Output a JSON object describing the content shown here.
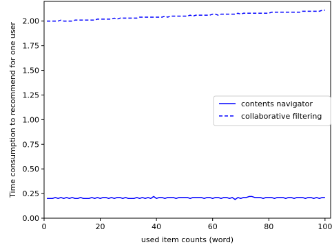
{
  "chart_data": {
    "type": "line",
    "title": "",
    "xlabel": "used item counts (word)",
    "ylabel": "Time consumption to recommend for one user",
    "xlim": [
      0,
      102
    ],
    "ylim": [
      0,
      2.2
    ],
    "xticks": [
      0,
      20,
      40,
      60,
      80,
      100
    ],
    "yticks": [
      0.0,
      0.25,
      0.5,
      0.75,
      1.0,
      1.25,
      1.5,
      1.75,
      2.0
    ],
    "xtick_labels": [
      "0",
      "20",
      "40",
      "60",
      "80",
      "100"
    ],
    "ytick_labels": [
      "0.00",
      "0.25",
      "0.50",
      "0.75",
      "1.00",
      "1.25",
      "1.50",
      "1.75",
      "2.00"
    ],
    "grid": false,
    "legend_position": "center-right",
    "series": [
      {
        "name": "contents navigator",
        "color": "#0000ff",
        "style": "solid",
        "x": [
          1,
          2,
          3,
          4,
          5,
          6,
          7,
          8,
          9,
          10,
          11,
          12,
          13,
          14,
          15,
          16,
          17,
          18,
          19,
          20,
          21,
          22,
          23,
          24,
          25,
          26,
          27,
          28,
          29,
          30,
          31,
          32,
          33,
          34,
          35,
          36,
          37,
          38,
          39,
          40,
          41,
          42,
          43,
          44,
          45,
          46,
          47,
          48,
          49,
          50,
          51,
          52,
          53,
          54,
          55,
          56,
          57,
          58,
          59,
          60,
          61,
          62,
          63,
          64,
          65,
          66,
          67,
          68,
          69,
          70,
          71,
          72,
          73,
          74,
          75,
          76,
          77,
          78,
          79,
          80,
          81,
          82,
          83,
          84,
          85,
          86,
          87,
          88,
          89,
          90,
          91,
          92,
          93,
          94,
          95,
          96,
          97,
          98,
          99,
          100
        ],
        "values": [
          0.2,
          0.2,
          0.2,
          0.21,
          0.2,
          0.21,
          0.2,
          0.21,
          0.2,
          0.21,
          0.2,
          0.2,
          0.21,
          0.2,
          0.2,
          0.2,
          0.21,
          0.2,
          0.21,
          0.2,
          0.21,
          0.21,
          0.2,
          0.21,
          0.2,
          0.21,
          0.21,
          0.2,
          0.21,
          0.2,
          0.2,
          0.2,
          0.21,
          0.2,
          0.21,
          0.2,
          0.21,
          0.2,
          0.22,
          0.2,
          0.21,
          0.21,
          0.2,
          0.21,
          0.21,
          0.21,
          0.2,
          0.21,
          0.21,
          0.21,
          0.21,
          0.2,
          0.21,
          0.21,
          0.21,
          0.21,
          0.2,
          0.21,
          0.21,
          0.2,
          0.21,
          0.21,
          0.2,
          0.21,
          0.21,
          0.2,
          0.21,
          0.19,
          0.21,
          0.2,
          0.21,
          0.21,
          0.22,
          0.22,
          0.21,
          0.21,
          0.21,
          0.2,
          0.21,
          0.21,
          0.21,
          0.2,
          0.21,
          0.21,
          0.21,
          0.2,
          0.21,
          0.21,
          0.2,
          0.21,
          0.21,
          0.21,
          0.2,
          0.21,
          0.21,
          0.2,
          0.21,
          0.2,
          0.21,
          0.21
        ]
      },
      {
        "name": "collaborative filtering",
        "color": "#0000ff",
        "style": "dashed",
        "x": [
          1,
          2,
          3,
          4,
          5,
          6,
          7,
          8,
          9,
          10,
          11,
          12,
          13,
          14,
          15,
          16,
          17,
          18,
          19,
          20,
          21,
          22,
          23,
          24,
          25,
          26,
          27,
          28,
          29,
          30,
          31,
          32,
          33,
          34,
          35,
          36,
          37,
          38,
          39,
          40,
          41,
          42,
          43,
          44,
          45,
          46,
          47,
          48,
          49,
          50,
          51,
          52,
          53,
          54,
          55,
          56,
          57,
          58,
          59,
          60,
          61,
          62,
          63,
          64,
          65,
          66,
          67,
          68,
          69,
          70,
          71,
          72,
          73,
          74,
          75,
          76,
          77,
          78,
          79,
          80,
          81,
          82,
          83,
          84,
          85,
          86,
          87,
          88,
          89,
          90,
          91,
          92,
          93,
          94,
          95,
          96,
          97,
          98,
          99,
          100
        ],
        "values": [
          2.0,
          2.0,
          2.0,
          2.0,
          2.0,
          2.01,
          2.0,
          2.0,
          2.0,
          2.0,
          2.01,
          2.01,
          2.01,
          2.01,
          2.01,
          2.01,
          2.01,
          2.01,
          2.02,
          2.02,
          2.02,
          2.02,
          2.02,
          2.02,
          2.03,
          2.02,
          2.03,
          2.03,
          2.03,
          2.03,
          2.03,
          2.03,
          2.03,
          2.04,
          2.04,
          2.04,
          2.04,
          2.04,
          2.04,
          2.04,
          2.04,
          2.04,
          2.05,
          2.04,
          2.05,
          2.05,
          2.05,
          2.05,
          2.05,
          2.05,
          2.05,
          2.06,
          2.05,
          2.06,
          2.06,
          2.06,
          2.06,
          2.06,
          2.06,
          2.07,
          2.07,
          2.06,
          2.07,
          2.07,
          2.07,
          2.07,
          2.07,
          2.07,
          2.08,
          2.07,
          2.08,
          2.08,
          2.08,
          2.08,
          2.08,
          2.08,
          2.08,
          2.08,
          2.08,
          2.08,
          2.09,
          2.09,
          2.09,
          2.09,
          2.09,
          2.09,
          2.09,
          2.09,
          2.09,
          2.09,
          2.09,
          2.1,
          2.1,
          2.1,
          2.1,
          2.1,
          2.1,
          2.1,
          2.11,
          2.11
        ]
      }
    ]
  }
}
